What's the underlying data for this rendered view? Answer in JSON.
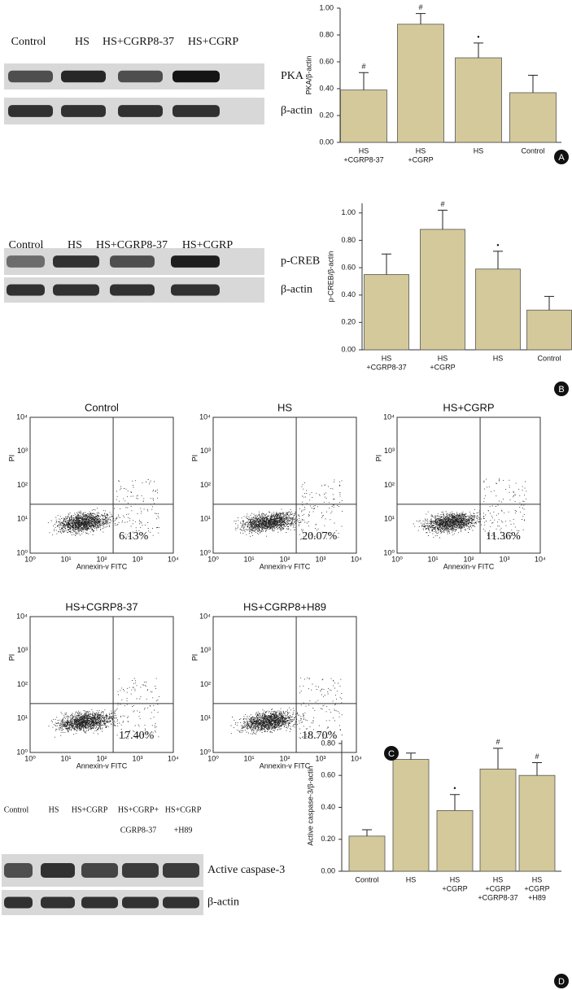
{
  "chart_data": [
    {
      "type": "bar",
      "y_label": "PKA/β-actin",
      "categories": [
        [
          "HS",
          "+CGRP8-37"
        ],
        [
          "HS",
          "+CGRP"
        ],
        [
          "HS"
        ],
        [
          "Control"
        ]
      ],
      "values": [
        0.39,
        0.88,
        0.63,
        0.37
      ],
      "errors": [
        0.13,
        0.08,
        0.11,
        0.13
      ],
      "markers": [
        "#",
        "#",
        "•",
        null
      ],
      "color": "#d4c99a",
      "ylim": [
        0,
        1.0
      ],
      "yticks": [
        {
          "value": 0,
          "label": "0.00"
        },
        {
          "value": 0.2,
          "label": "0.20"
        },
        {
          "value": 0.4,
          "label": "0.40"
        },
        {
          "value": 0.6,
          "label": "0.60"
        },
        {
          "value": 0.8,
          "label": "0.80"
        },
        {
          "value": 1.0,
          "label": "1.00"
        }
      ],
      "panel": "A"
    },
    {
      "type": "bar",
      "y_label": "p-CREB/β-actin",
      "categories": [
        [
          "HS",
          "+CGRP8-37"
        ],
        [
          "HS",
          "+CGRP"
        ],
        [
          "HS"
        ],
        [
          "Control"
        ]
      ],
      "values": [
        0.55,
        0.88,
        0.59,
        0.29
      ],
      "errors": [
        0.15,
        0.14,
        0.13,
        0.1
      ],
      "markers": [
        null,
        "#",
        "•",
        null
      ],
      "color": "#d4c99a",
      "ylim": [
        0,
        1.07
      ],
      "yticks": [
        {
          "value": 0,
          "label": "0.00"
        },
        {
          "value": 0.2,
          "label": "0.20"
        },
        {
          "value": 0.4,
          "label": "0.40"
        },
        {
          "value": 0.6,
          "label": "0.60"
        },
        {
          "value": 0.8,
          "label": "0.80"
        },
        {
          "value": 1.0,
          "label": "1.00"
        }
      ],
      "panel": "B"
    },
    {
      "type": "bar",
      "y_label": "Active caspase-3/β-actin",
      "categories": [
        [
          "Control"
        ],
        [
          "HS"
        ],
        [
          "HS",
          "+CGRP"
        ],
        [
          "HS",
          "+CGRP",
          "+CGRP8-37"
        ],
        [
          "HS",
          "+CGRP",
          "+H89"
        ]
      ],
      "values": [
        0.22,
        0.7,
        0.38,
        0.64,
        0.6
      ],
      "errors": [
        0.04,
        0.04,
        0.1,
        0.13,
        0.08
      ],
      "markers": [
        null,
        null,
        "•",
        "#",
        "#"
      ],
      "color": "#d4c99a",
      "ylim": [
        0,
        0.82
      ],
      "yticks": [
        {
          "value": 0,
          "label": "0.00"
        },
        {
          "value": 0.2,
          "label": "0.20"
        },
        {
          "value": 0.4,
          "label": "0.40"
        },
        {
          "value": 0.6,
          "label": "0.60"
        },
        {
          "value": 0.8,
          "label": "0.80"
        }
      ],
      "panel": "D"
    }
  ],
  "blots": [
    {
      "lanes": [
        [
          "Control"
        ],
        [
          "HS"
        ],
        [
          "HS+CGRP8-37"
        ],
        [
          "HS+CGRP"
        ]
      ],
      "bands": [
        "PKA",
        "β-actin"
      ]
    },
    {
      "lanes": [
        [
          "Control"
        ],
        [
          "HS"
        ],
        [
          "HS+CGRP8-37"
        ],
        [
          "HS+CGRP"
        ]
      ],
      "bands": [
        "p-CREB",
        "β-actin"
      ]
    },
    {
      "lanes": [
        [
          "Control"
        ],
        [
          "HS"
        ],
        [
          "HS+CGRP"
        ],
        [
          "HS+CGRP+",
          "CGRP8-37"
        ],
        [
          "HS+CGRP",
          "+H89"
        ]
      ],
      "bands": [
        "Active caspase-3",
        "β-actin"
      ]
    }
  ],
  "flow": {
    "x_label": "Annexin-v FITC",
    "y_label": "PI",
    "ticks": [
      "10⁰",
      "10¹",
      "10²",
      "10³",
      "10⁴"
    ],
    "panel": "C",
    "plots": [
      {
        "title": "Control",
        "percent": "6.13%"
      },
      {
        "title": "HS",
        "percent": "20.07%"
      },
      {
        "title": "HS+CGRP",
        "percent": "11.36%"
      },
      {
        "title": "HS+CGRP8-37",
        "percent": "17.40%"
      },
      {
        "title": "HS+CGRP8+H89",
        "percent": "18.70%"
      }
    ]
  }
}
